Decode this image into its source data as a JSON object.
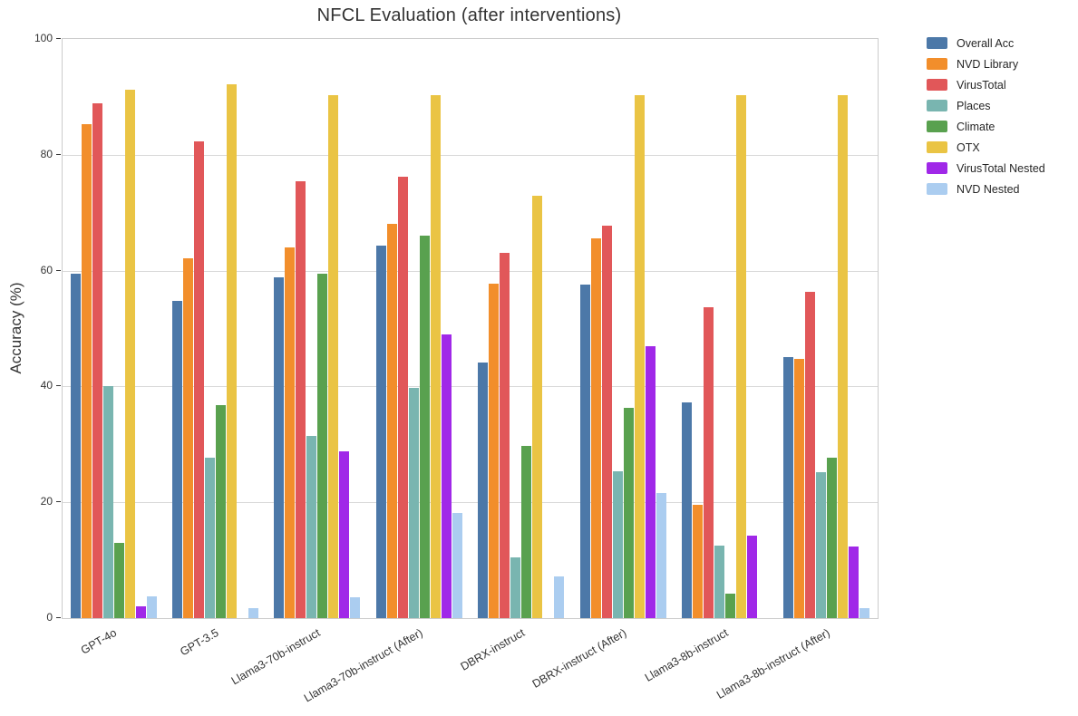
{
  "chart_data": {
    "type": "bar",
    "title": "NFCL Evaluation (after interventions)",
    "ylabel": "Accuracy (%)",
    "xlabel": "",
    "ylim": [
      0,
      100
    ],
    "yticks": [
      0,
      20,
      40,
      60,
      80,
      100
    ],
    "grid": "horizontal",
    "legend_position": "outside-top-right",
    "categories": [
      "GPT-4o",
      "GPT-3.5",
      "Llama3-70b-instruct",
      "Llama3-70b-instruct (After)",
      "DBRX-instruct",
      "DBRX-instruct (After)",
      "Llama3-8b-instruct",
      "Llama3-8b-instruct (After)"
    ],
    "series": [
      {
        "name": "Overall Acc",
        "color": "#4c78a8",
        "values": [
          59.5,
          54.8,
          58.8,
          64.3,
          44.2,
          57.6,
          37.2,
          45.0
        ]
      },
      {
        "name": "NVD Library",
        "color": "#f28e2b",
        "values": [
          85.3,
          62.1,
          64.0,
          68.0,
          57.8,
          65.5,
          19.5,
          44.8
        ]
      },
      {
        "name": "VirusTotal",
        "color": "#e15759",
        "values": [
          88.9,
          82.3,
          75.5,
          76.2,
          63.0,
          67.7,
          53.7,
          56.3
        ]
      },
      {
        "name": "Places",
        "color": "#79b5b0",
        "values": [
          40.0,
          27.7,
          31.5,
          39.7,
          10.5,
          25.3,
          12.5,
          25.2
        ]
      },
      {
        "name": "Climate",
        "color": "#59a14f",
        "values": [
          13.0,
          36.8,
          59.5,
          66.0,
          29.8,
          36.3,
          4.2,
          27.7
        ]
      },
      {
        "name": "OTX",
        "color": "#eac444",
        "values": [
          91.2,
          92.2,
          90.3,
          90.3,
          73.0,
          90.3,
          90.3,
          90.3
        ]
      },
      {
        "name": "VirusTotal Nested",
        "color": "#a028e8",
        "values": [
          2.0,
          0,
          28.8,
          49.0,
          0,
          47.0,
          14.3,
          12.4
        ]
      },
      {
        "name": "NVD Nested",
        "color": "#abcdf0",
        "values": [
          3.7,
          1.7,
          3.6,
          18.2,
          7.2,
          21.6,
          0,
          1.7
        ]
      }
    ],
    "axis_colors": {
      "grid": "#d9d9d9",
      "spine": "#cccccc",
      "text": "#333333"
    }
  }
}
